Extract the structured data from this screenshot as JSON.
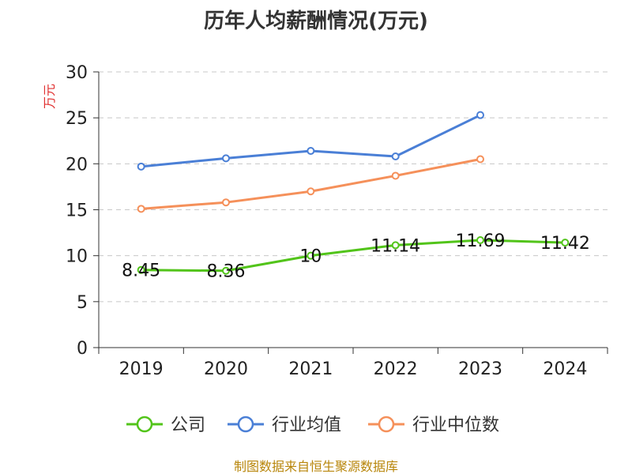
{
  "chart_data": {
    "type": "line",
    "title": "历年人均薪酬情况(万元)",
    "ylabel": "万元",
    "xlabel": "",
    "categories": [
      "2019",
      "2020",
      "2021",
      "2022",
      "2023",
      "2024"
    ],
    "ylim": [
      0,
      30
    ],
    "yticks": [
      0,
      5,
      10,
      15,
      20,
      25,
      30
    ],
    "grid": true,
    "legend_position": "bottom",
    "series": [
      {
        "name": "公司",
        "color": "#52c41a",
        "values": [
          8.45,
          8.36,
          10,
          11.14,
          11.69,
          11.42
        ],
        "labels": [
          "8.45",
          "8.36",
          "10",
          "11.14",
          "11.69",
          "11.42"
        ]
      },
      {
        "name": "行业均值",
        "color": "#4a7fd6",
        "values": [
          19.7,
          20.6,
          21.4,
          20.8,
          25.3,
          null
        ]
      },
      {
        "name": "行业中位数",
        "color": "#f5905a",
        "values": [
          15.1,
          15.8,
          17.0,
          18.7,
          20.5,
          null
        ]
      }
    ]
  },
  "footer": {
    "source": "制图数据来自恒生聚源数据库"
  }
}
